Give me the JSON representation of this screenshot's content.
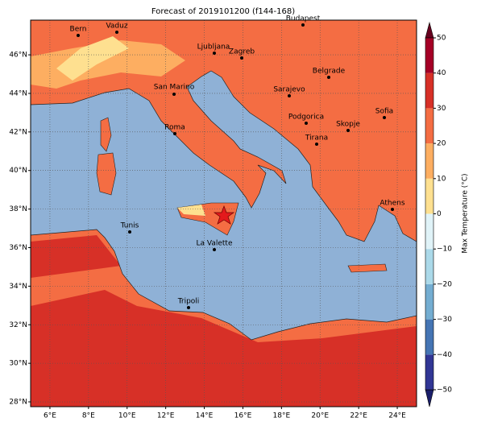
{
  "title": "Forecast of 2019101200 (f144-168)",
  "map": {
    "xlim": [
      5,
      25
    ],
    "ylim": [
      27.75,
      47.8
    ],
    "grid": true,
    "xticks": [
      {
        "value": 6,
        "label": "6°E"
      },
      {
        "value": 8,
        "label": "8°E"
      },
      {
        "value": 10,
        "label": "10°E"
      },
      {
        "value": 12,
        "label": "12°E"
      },
      {
        "value": 14,
        "label": "14°E"
      },
      {
        "value": 16,
        "label": "16°E"
      },
      {
        "value": 18,
        "label": "18°E"
      },
      {
        "value": 20,
        "label": "20°E"
      },
      {
        "value": 22,
        "label": "22°E"
      },
      {
        "value": 24,
        "label": "24°E"
      }
    ],
    "yticks": [
      {
        "value": 28,
        "label": "28°N"
      },
      {
        "value": 30,
        "label": "30°N"
      },
      {
        "value": 32,
        "label": "32°N"
      },
      {
        "value": 34,
        "label": "34°N"
      },
      {
        "value": 36,
        "label": "36°N"
      },
      {
        "value": 38,
        "label": "38°N"
      },
      {
        "value": 40,
        "label": "40°N"
      },
      {
        "value": 42,
        "label": "42°N"
      },
      {
        "value": 44,
        "label": "44°N"
      },
      {
        "value": 46,
        "label": "46°N"
      }
    ]
  },
  "cities": [
    "Bern",
    "Vaduz",
    "Budapest",
    "Ljubljana",
    "Zagreb",
    "Belgrade",
    "San Marino",
    "Sarajevo",
    "Sofia",
    "Podgorica",
    "Skopje",
    "Roma",
    "Tirana",
    "Athens",
    "Tunis",
    "La Valette",
    "Tripoli"
  ],
  "colorbar": {
    "label": "Max Temperature (°C)",
    "lim": [
      -50,
      50
    ],
    "colors": [
      "#313695",
      "#4575b4",
      "#74add1",
      "#abd9e9",
      "#e0f3f8",
      "#fee090",
      "#fdae61",
      "#f46d43",
      "#d73027",
      "#a50026"
    ],
    "ticks": [
      {
        "value": -50,
        "label": "−50"
      },
      {
        "value": -40,
        "label": "−40"
      },
      {
        "value": -30,
        "label": "−30"
      },
      {
        "value": -20,
        "label": "−20"
      },
      {
        "value": -10,
        "label": "−10"
      },
      0,
      10,
      20,
      30,
      40,
      50
    ]
  }
}
